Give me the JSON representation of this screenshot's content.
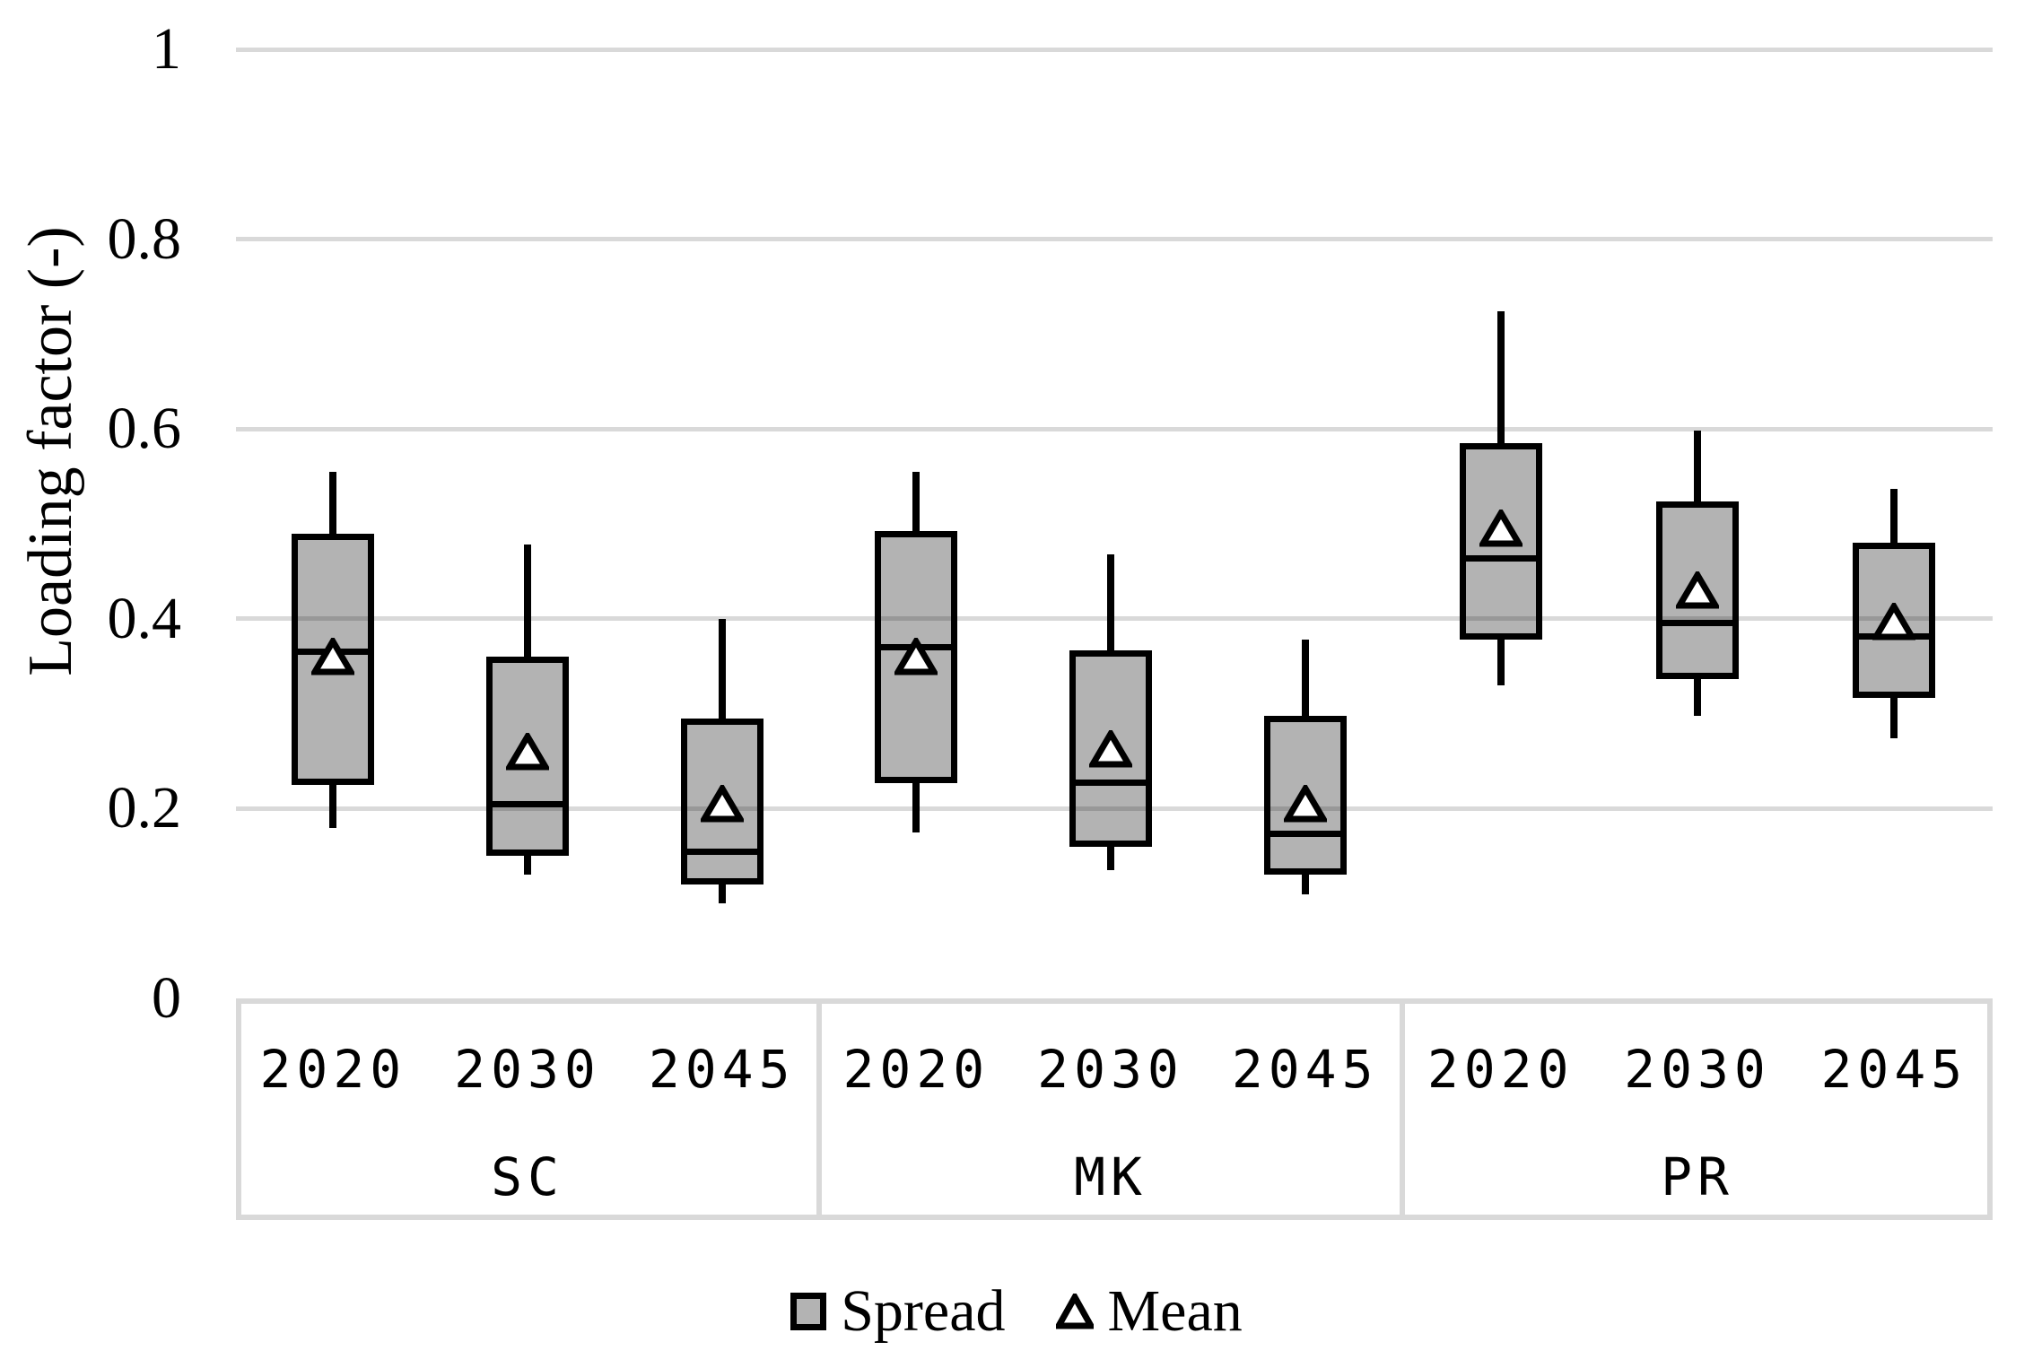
{
  "chart_data": {
    "type": "box",
    "title": "",
    "ylabel": "Loading factor (-)",
    "ylim": [
      0,
      1
    ],
    "grid": "horizontal",
    "yticks": [
      {
        "label": "0",
        "value": 0
      },
      {
        "label": "0.2",
        "value": 0.2
      },
      {
        "label": "0.4",
        "value": 0.4
      },
      {
        "label": "0.6",
        "value": 0.6
      },
      {
        "label": "0.8",
        "value": 0.8
      },
      {
        "label": "1",
        "value": 1
      }
    ],
    "x_axis": {
      "groups": [
        {
          "label": "SC",
          "years": [
            "2020",
            "2030",
            "2045"
          ]
        },
        {
          "label": "MK",
          "years": [
            "2020",
            "2030",
            "2045"
          ]
        },
        {
          "label": "PR",
          "years": [
            "2020",
            "2030",
            "2045"
          ]
        }
      ]
    },
    "boxes": [
      {
        "group": "SC",
        "year": "2020",
        "min": 0.18,
        "q1": 0.225,
        "median": 0.365,
        "mean": 0.36,
        "q3": 0.49,
        "max": 0.555
      },
      {
        "group": "SC",
        "year": "2030",
        "min": 0.13,
        "q1": 0.15,
        "median": 0.205,
        "mean": 0.26,
        "q3": 0.36,
        "max": 0.478
      },
      {
        "group": "SC",
        "year": "2045",
        "min": 0.1,
        "q1": 0.12,
        "median": 0.155,
        "mean": 0.205,
        "q3": 0.295,
        "max": 0.4
      },
      {
        "group": "MK",
        "year": "2020",
        "min": 0.175,
        "q1": 0.227,
        "median": 0.37,
        "mean": 0.36,
        "q3": 0.492,
        "max": 0.555
      },
      {
        "group": "MK",
        "year": "2030",
        "min": 0.135,
        "q1": 0.16,
        "median": 0.227,
        "mean": 0.263,
        "q3": 0.367,
        "max": 0.468
      },
      {
        "group": "MK",
        "year": "2045",
        "min": 0.11,
        "q1": 0.13,
        "median": 0.173,
        "mean": 0.205,
        "q3": 0.298,
        "max": 0.378
      },
      {
        "group": "PR",
        "year": "2020",
        "min": 0.33,
        "q1": 0.378,
        "median": 0.464,
        "mean": 0.495,
        "q3": 0.585,
        "max": 0.724
      },
      {
        "group": "PR",
        "year": "2030",
        "min": 0.298,
        "q1": 0.336,
        "median": 0.396,
        "mean": 0.43,
        "q3": 0.524,
        "max": 0.598
      },
      {
        "group": "PR",
        "year": "2045",
        "min": 0.274,
        "q1": 0.317,
        "median": 0.381,
        "mean": 0.397,
        "q3": 0.48,
        "max": 0.537
      }
    ],
    "legend": [
      {
        "label": "Spread",
        "marker": "filled-square"
      },
      {
        "label": "Mean",
        "marker": "open-triangle"
      }
    ],
    "colors": {
      "box_fill": "#b3b3b3",
      "box_border": "#000000",
      "whisker": "#000000",
      "median": "#000000",
      "mean_marker_fill": "#ffffff",
      "mean_marker_border": "#000000",
      "gridline": "#d9d9d9",
      "table_border": "#d9d9d9",
      "text": "#000000",
      "background": "#ffffff"
    }
  }
}
